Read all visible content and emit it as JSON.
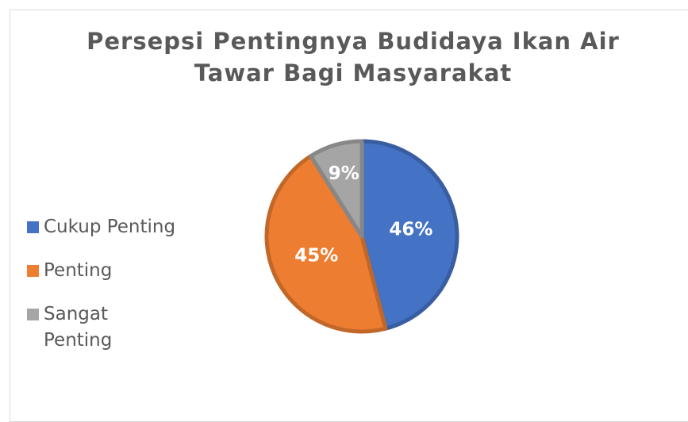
{
  "chart_data": {
    "type": "pie",
    "title": "Persepsi Pentingnya Budidaya Ikan Air Tawar Bagi Masyarakat",
    "categories": [
      "Cukup Penting",
      "Penting",
      "Sangat Penting"
    ],
    "values": [
      46,
      45,
      9
    ],
    "value_labels": [
      "46%",
      "45%",
      "9%"
    ],
    "colors": [
      "#4472c4",
      "#ed7d31",
      "#a5a5a5"
    ],
    "legend": "left"
  }
}
